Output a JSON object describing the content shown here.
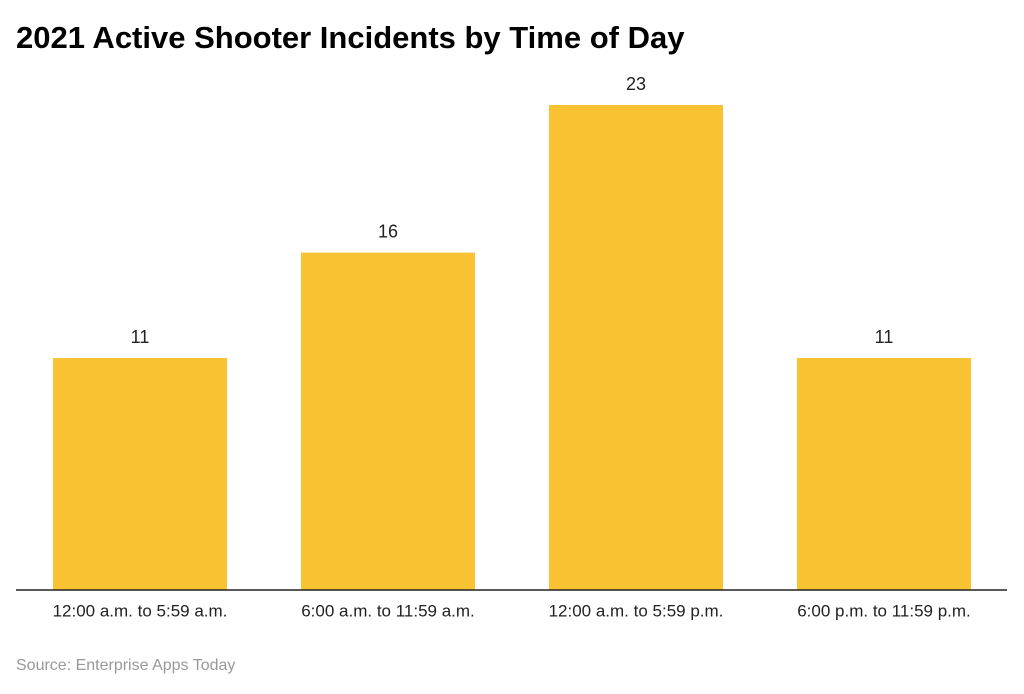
{
  "chart_data": {
    "type": "bar",
    "title": "2021 Active Shooter Incidents by Time of Day",
    "categories": [
      "12:00 a.m. to 5:59 a.m.",
      "6:00 a.m. to 11:59 a.m.",
      "12:00 a.m. to 5:59 p.m.",
      "6:00 p.m. to 11:59 p.m."
    ],
    "values": [
      11,
      16,
      23,
      11
    ],
    "color": "#f9c232",
    "source": "Source: Enterprise Apps Today"
  }
}
